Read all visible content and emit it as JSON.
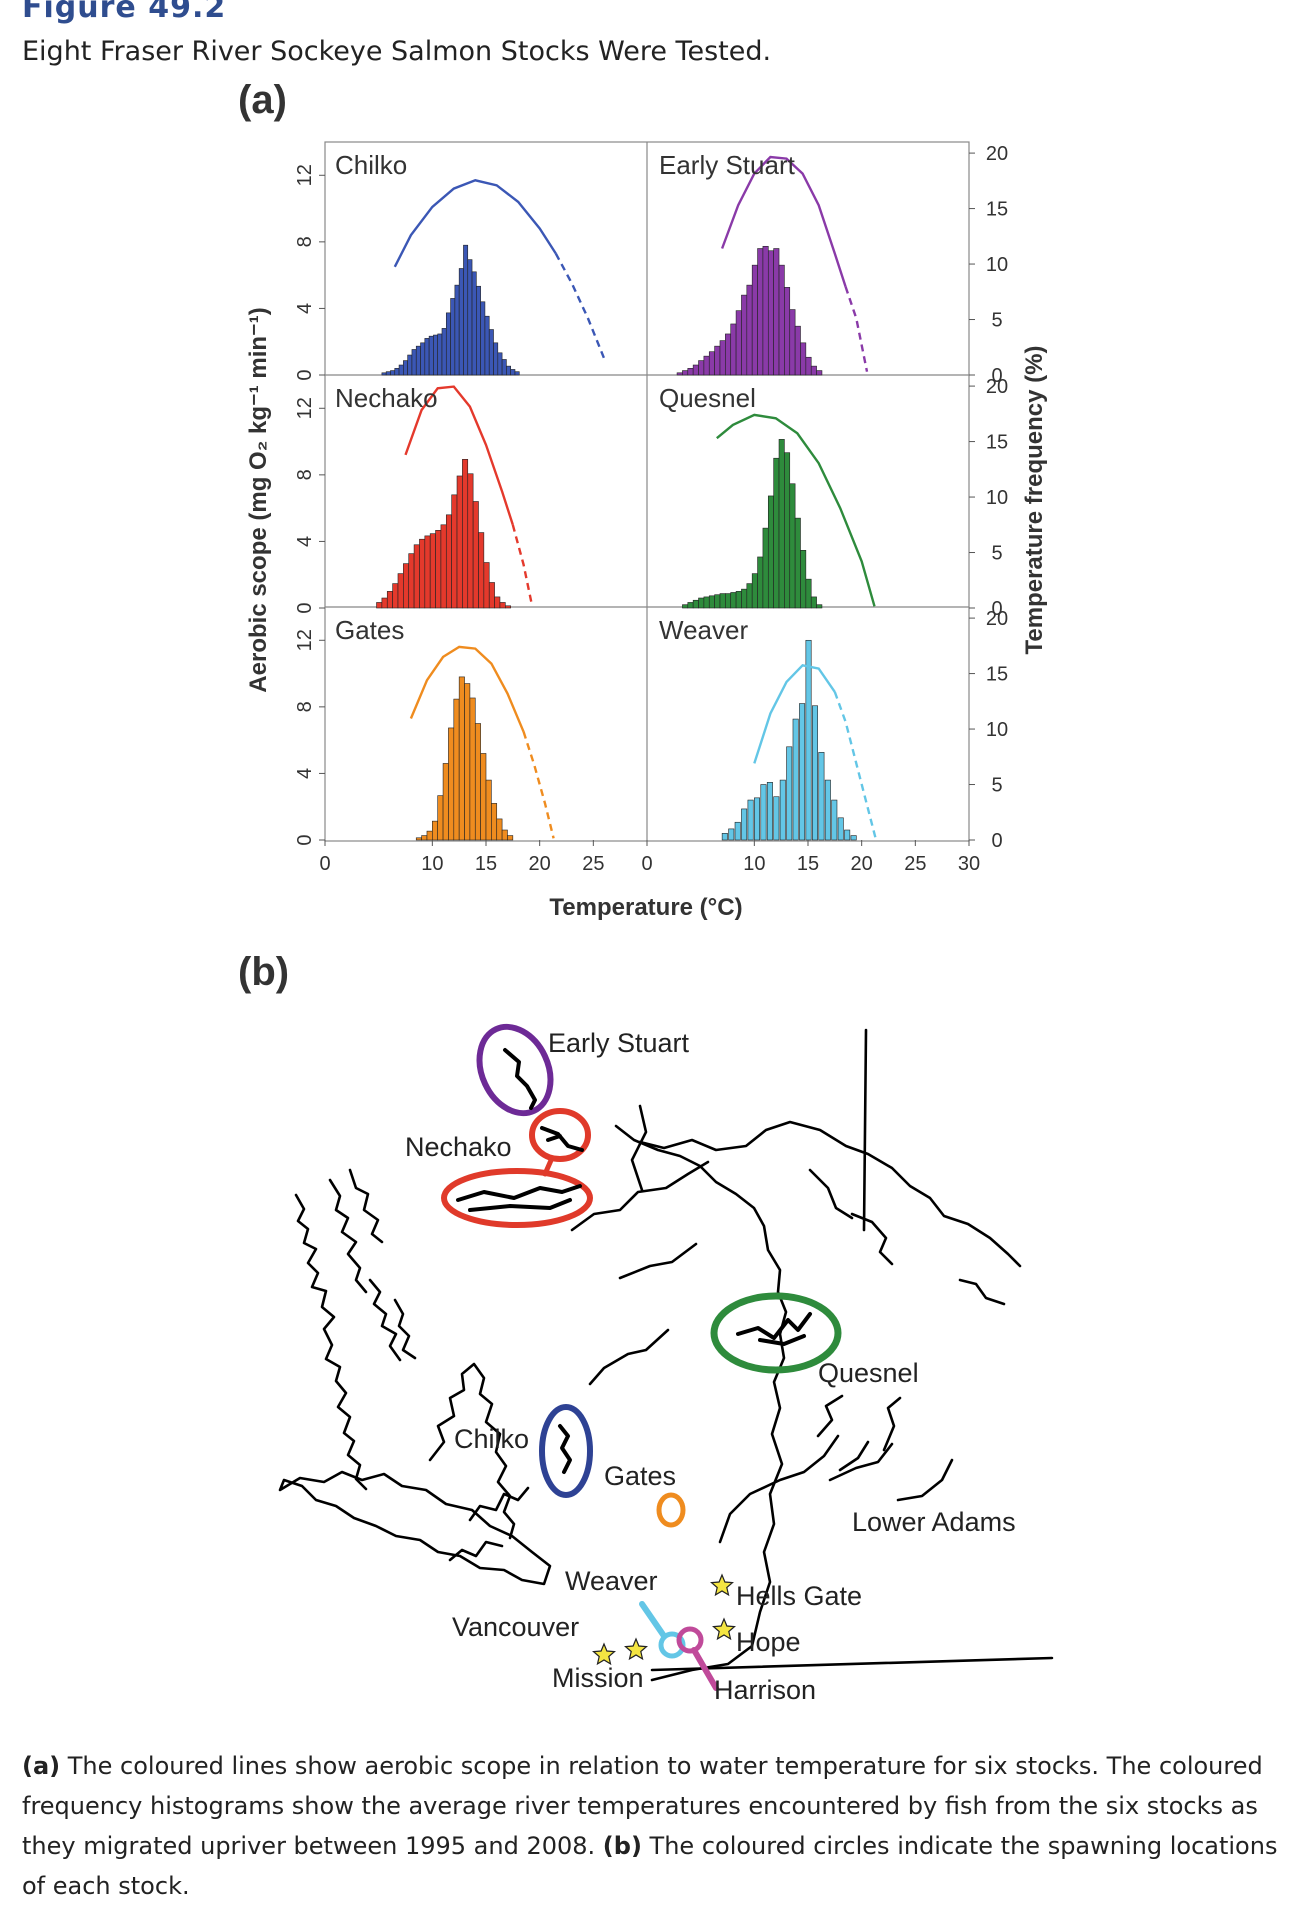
{
  "figure": {
    "title": "Figure 49.2",
    "subtitle": "Eight Fraser River Sockeye Salmon Stocks Were Tested."
  },
  "panels": {
    "a": "(a)",
    "b": "(b)"
  },
  "caption": {
    "a_tag": "(a)",
    "a_text": " The coloured lines show aerobic scope in relation to water temperature for six stocks. The coloured frequency histograms show the average river temperatures encountered by fish from the six stocks as they migrated upriver between 1995 and 2008. ",
    "b_tag": "(b)",
    "b_text": " The coloured circles indicate the spawning locations of each stock."
  },
  "colors": {
    "Chilko": "#3b57b5",
    "Early Stuart": "#8a3aa8",
    "Nechako": "#e4392c",
    "Quesnel": "#2e8b3c",
    "Gates": "#ef8c1f",
    "Weaver": "#63c6e6",
    "axis": "#555555",
    "map": "#000000",
    "star": "#f4e542"
  },
  "chart_data": {
    "type": "bar",
    "xlabel": "Temperature (°C)",
    "ylabel_left": "Aerobic scope (mg O₂ kg⁻¹ min⁻¹)",
    "ylabel_right": "Temperature frequency (%)",
    "xlim": [
      0,
      30
    ],
    "x_ticks_left": [
      "0",
      "10",
      "15",
      "20",
      "25"
    ],
    "x_ticks_right": [
      "0",
      "10",
      "15",
      "20",
      "25",
      "30"
    ],
    "ylim_left": [
      0,
      14
    ],
    "y_ticks_left": [
      "0",
      "4",
      "8",
      "12"
    ],
    "ylim_right": [
      0,
      21
    ],
    "y_ticks_right": [
      "0",
      "5",
      "10",
      "15",
      "20"
    ],
    "panels": [
      {
        "stock": "Chilko",
        "col": 0,
        "row": 0,
        "curve_solid": [
          [
            6.5,
            6.5
          ],
          [
            8,
            8.4
          ],
          [
            10,
            10.1
          ],
          [
            12,
            11.2
          ],
          [
            14,
            11.7
          ],
          [
            16,
            11.4
          ],
          [
            18,
            10.4
          ],
          [
            20,
            8.8
          ],
          [
            21.5,
            7.3
          ]
        ],
        "curve_dashed": [
          [
            21.5,
            7.3
          ],
          [
            23,
            5.5
          ],
          [
            24.5,
            3.4
          ],
          [
            26,
            1.0
          ]
        ],
        "hist": [
          [
            5.3,
            0.2
          ],
          [
            5.7,
            0.3
          ],
          [
            6.1,
            0.4
          ],
          [
            6.5,
            0.6
          ],
          [
            6.9,
            0.9
          ],
          [
            7.3,
            1.3
          ],
          [
            7.7,
            1.8
          ],
          [
            8.1,
            2.3
          ],
          [
            8.5,
            2.6
          ],
          [
            8.9,
            2.9
          ],
          [
            9.3,
            3.3
          ],
          [
            9.7,
            3.5
          ],
          [
            10.1,
            3.6
          ],
          [
            10.5,
            3.7
          ],
          [
            10.9,
            4.2
          ],
          [
            11.3,
            5.6
          ],
          [
            11.7,
            6.9
          ],
          [
            12.1,
            8.1
          ],
          [
            12.5,
            9.6
          ],
          [
            12.9,
            11.7
          ],
          [
            13.3,
            10.4
          ],
          [
            13.7,
            9.3
          ],
          [
            14.1,
            8.0
          ],
          [
            14.5,
            6.6
          ],
          [
            14.9,
            5.3
          ],
          [
            15.3,
            4.1
          ],
          [
            15.7,
            2.9
          ],
          [
            16.1,
            2.0
          ],
          [
            16.5,
            1.4
          ],
          [
            16.9,
            0.8
          ],
          [
            17.3,
            0.5
          ],
          [
            17.7,
            0.3
          ]
        ]
      },
      {
        "stock": "Early Stuart",
        "col": 1,
        "row": 0,
        "curve_solid": [
          [
            7,
            7.6
          ],
          [
            8.5,
            10.2
          ],
          [
            10,
            12.1
          ],
          [
            11.5,
            13.1
          ],
          [
            13,
            13.0
          ],
          [
            14.5,
            12.1
          ],
          [
            16,
            10.2
          ],
          [
            17.5,
            7.3
          ],
          [
            18.5,
            5.3
          ]
        ],
        "curve_dashed": [
          [
            18.5,
            5.3
          ],
          [
            19.5,
            3.4
          ],
          [
            20.5,
            0.2
          ]
        ],
        "hist": [
          [
            2.8,
            0.2
          ],
          [
            3.3,
            0.4
          ],
          [
            3.8,
            0.6
          ],
          [
            4.3,
            0.9
          ],
          [
            4.8,
            1.3
          ],
          [
            5.3,
            1.7
          ],
          [
            5.8,
            2.1
          ],
          [
            6.3,
            2.6
          ],
          [
            6.8,
            3.1
          ],
          [
            7.3,
            3.7
          ],
          [
            7.8,
            4.6
          ],
          [
            8.3,
            5.8
          ],
          [
            8.8,
            7.2
          ],
          [
            9.3,
            8.1
          ],
          [
            9.8,
            9.9
          ],
          [
            10.3,
            11.4
          ],
          [
            10.8,
            11.6
          ],
          [
            11.3,
            11.2
          ],
          [
            11.8,
            11.4
          ],
          [
            12.3,
            9.9
          ],
          [
            12.8,
            7.9
          ],
          [
            13.3,
            5.9
          ],
          [
            13.8,
            4.4
          ],
          [
            14.3,
            2.9
          ],
          [
            14.8,
            1.6
          ],
          [
            15.3,
            0.8
          ],
          [
            15.8,
            0.4
          ]
        ]
      },
      {
        "stock": "Nechako",
        "col": 0,
        "row": 1,
        "curve_solid": [
          [
            7.5,
            9.2
          ],
          [
            9,
            11.9
          ],
          [
            10.5,
            13.2
          ],
          [
            12,
            13.3
          ],
          [
            13.5,
            12.1
          ],
          [
            15,
            9.8
          ],
          [
            16.5,
            7.0
          ],
          [
            17.5,
            5.0
          ]
        ],
        "curve_dashed": [
          [
            17.5,
            5.0
          ],
          [
            18.5,
            2.6
          ],
          [
            19.3,
            0.1
          ]
        ],
        "hist": [
          [
            4.8,
            0.5
          ],
          [
            5.3,
            0.9
          ],
          [
            5.8,
            1.5
          ],
          [
            6.3,
            2.2
          ],
          [
            6.8,
            3.1
          ],
          [
            7.3,
            4.0
          ],
          [
            7.8,
            4.9
          ],
          [
            8.3,
            5.7
          ],
          [
            8.8,
            6.2
          ],
          [
            9.3,
            6.5
          ],
          [
            9.8,
            6.7
          ],
          [
            10.3,
            7.0
          ],
          [
            10.8,
            7.5
          ],
          [
            11.3,
            8.4
          ],
          [
            11.8,
            10.2
          ],
          [
            12.3,
            11.9
          ],
          [
            12.8,
            13.4
          ],
          [
            13.3,
            12.1
          ],
          [
            13.8,
            9.6
          ],
          [
            14.3,
            6.8
          ],
          [
            14.8,
            4.1
          ],
          [
            15.3,
            2.3
          ],
          [
            15.8,
            1.0
          ],
          [
            16.3,
            0.5
          ],
          [
            16.8,
            0.2
          ]
        ]
      },
      {
        "stock": "Quesnel",
        "col": 1,
        "row": 1,
        "curve_solid": [
          [
            6.5,
            10.2
          ],
          [
            8,
            11.0
          ],
          [
            10,
            11.6
          ],
          [
            12,
            11.4
          ],
          [
            14,
            10.5
          ],
          [
            16,
            8.7
          ],
          [
            18,
            6.0
          ],
          [
            20,
            2.8
          ],
          [
            21.2,
            0.1
          ]
        ],
        "curve_dashed": [],
        "hist": [
          [
            3.3,
            0.3
          ],
          [
            3.8,
            0.5
          ],
          [
            4.3,
            0.7
          ],
          [
            4.8,
            0.9
          ],
          [
            5.3,
            1.0
          ],
          [
            5.8,
            1.1
          ],
          [
            6.3,
            1.2
          ],
          [
            6.8,
            1.3
          ],
          [
            7.3,
            1.3
          ],
          [
            7.8,
            1.4
          ],
          [
            8.3,
            1.5
          ],
          [
            8.8,
            1.7
          ],
          [
            9.3,
            2.2
          ],
          [
            9.8,
            3.1
          ],
          [
            10.3,
            4.6
          ],
          [
            10.8,
            7.2
          ],
          [
            11.3,
            10.1
          ],
          [
            11.8,
            13.5
          ],
          [
            12.3,
            15.2
          ],
          [
            12.8,
            14.0
          ],
          [
            13.3,
            11.2
          ],
          [
            13.8,
            8.1
          ],
          [
            14.3,
            5.2
          ],
          [
            14.8,
            2.6
          ],
          [
            15.3,
            1.0
          ],
          [
            15.8,
            0.3
          ]
        ]
      },
      {
        "stock": "Gates",
        "col": 0,
        "row": 2,
        "curve_solid": [
          [
            8,
            7.3
          ],
          [
            9.5,
            9.6
          ],
          [
            11,
            11.0
          ],
          [
            12.5,
            11.6
          ],
          [
            14,
            11.5
          ],
          [
            15.5,
            10.6
          ],
          [
            17,
            8.8
          ],
          [
            18.5,
            6.5
          ]
        ],
        "curve_dashed": [
          [
            18.5,
            6.5
          ],
          [
            19.5,
            4.5
          ],
          [
            20.5,
            2.2
          ],
          [
            21.3,
            0.1
          ]
        ],
        "hist": [
          [
            8.5,
            0.2
          ],
          [
            9,
            0.4
          ],
          [
            9.5,
            0.8
          ],
          [
            10,
            1.7
          ],
          [
            10.5,
            4.0
          ],
          [
            11,
            6.9
          ],
          [
            11.5,
            10.1
          ],
          [
            12,
            12.7
          ],
          [
            12.5,
            14.7
          ],
          [
            13,
            14.1
          ],
          [
            13.5,
            12.8
          ],
          [
            14,
            10.5
          ],
          [
            14.5,
            7.8
          ],
          [
            15,
            5.4
          ],
          [
            15.5,
            3.3
          ],
          [
            16,
            1.9
          ],
          [
            16.5,
            0.9
          ],
          [
            17,
            0.4
          ]
        ]
      },
      {
        "stock": "Weaver",
        "col": 1,
        "row": 2,
        "curve_solid": [
          [
            10,
            4.6
          ],
          [
            11.5,
            7.6
          ],
          [
            13,
            9.5
          ],
          [
            14.5,
            10.5
          ],
          [
            16,
            10.3
          ],
          [
            17.5,
            8.9
          ]
        ],
        "curve_dashed": [
          [
            17.5,
            8.9
          ],
          [
            18.5,
            7.1
          ],
          [
            19.5,
            4.6
          ],
          [
            20.5,
            2.1
          ],
          [
            21.3,
            0.1
          ]
        ],
        "hist": [
          [
            7,
            0.6
          ],
          [
            7.6,
            1.0
          ],
          [
            8.2,
            1.6
          ],
          [
            8.8,
            2.8
          ],
          [
            9.4,
            3.6
          ],
          [
            10,
            3.8
          ],
          [
            10.6,
            5.0
          ],
          [
            11.2,
            5.2
          ],
          [
            11.8,
            3.9
          ],
          [
            12.4,
            5.4
          ],
          [
            13,
            8.4
          ],
          [
            13.6,
            10.9
          ],
          [
            14.2,
            12.3
          ],
          [
            14.8,
            18.0
          ],
          [
            15.4,
            12.1
          ],
          [
            16,
            7.9
          ],
          [
            16.6,
            5.4
          ],
          [
            17.2,
            3.6
          ],
          [
            17.8,
            2.0
          ],
          [
            18.4,
            0.9
          ],
          [
            19,
            0.4
          ]
        ]
      }
    ]
  },
  "map": {
    "labels": [
      "Early Stuart",
      "Nechako",
      "Quesnel",
      "Chilko",
      "Gates",
      "Lower Adams",
      "Weaver",
      "Hells Gate",
      "Vancouver",
      "Hope",
      "Mission",
      "Harrison"
    ]
  }
}
